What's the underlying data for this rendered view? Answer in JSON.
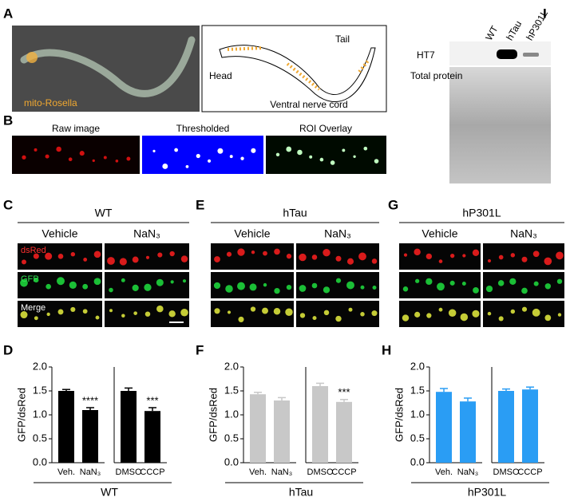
{
  "panels": {
    "A": {
      "label": "A",
      "caption": "mito-Rosella",
      "head": "Head",
      "tail": "Tail",
      "cord": "Ventral nerve cord"
    },
    "B": {
      "label": "B",
      "images": [
        "Raw image",
        "Thresholded",
        "ROI Overlay"
      ]
    },
    "C": {
      "label": "C",
      "title": "WT",
      "columns": [
        "Vehicle",
        "NaN₃"
      ],
      "rows": [
        "dsRed",
        "GFP",
        "Merge"
      ]
    },
    "E": {
      "label": "E",
      "title": "hTau",
      "columns": [
        "Vehicle",
        "NaN₃"
      ]
    },
    "G": {
      "label": "G",
      "title": "hP301L",
      "columns": [
        "Vehicle",
        "NaN₃"
      ]
    },
    "I": {
      "label": "I",
      "lanes": [
        "WT",
        "hTau",
        "hP301L"
      ],
      "rows": [
        "HT7",
        "Total protein"
      ]
    }
  },
  "chart_data": [
    {
      "type": "bar",
      "panel": "D",
      "ylabel": "GFP/dsRed",
      "xlabel": "WT",
      "color": "#000000",
      "ylim": [
        0,
        2
      ],
      "yticks": [
        {
          "value": 0,
          "label": "0.0"
        },
        0.5,
        {
          "value": 1,
          "label": "1.0"
        },
        1.5,
        {
          "value": 2,
          "label": "2.0"
        }
      ],
      "groups": [
        {
          "categories": [
            "Veh.",
            "NaN₃"
          ],
          "values": [
            1.5,
            1.1
          ],
          "errors": [
            0.03,
            0.05
          ],
          "annotations": [
            null,
            "****"
          ]
        },
        {
          "categories": [
            "DMSO",
            "CCCP"
          ],
          "values": [
            1.5,
            1.08
          ],
          "errors": [
            0.06,
            0.07
          ],
          "annotations": [
            null,
            "***"
          ]
        }
      ]
    },
    {
      "type": "bar",
      "panel": "F",
      "ylabel": "GFP/dsRed",
      "xlabel": "hTau",
      "color": "#c8c8c8",
      "ylim": [
        0,
        2
      ],
      "yticks": [
        {
          "value": 0,
          "label": "0.0"
        },
        0.5,
        {
          "value": 1,
          "label": "1.0"
        },
        1.5,
        {
          "value": 2,
          "label": "2.0"
        }
      ],
      "groups": [
        {
          "categories": [
            "Veh.",
            "NaN₃"
          ],
          "values": [
            1.43,
            1.3
          ],
          "errors": [
            0.04,
            0.06
          ],
          "annotations": [
            null,
            null
          ]
        },
        {
          "categories": [
            "DMSO",
            "CCCP"
          ],
          "values": [
            1.6,
            1.27
          ],
          "errors": [
            0.06,
            0.05
          ],
          "annotations": [
            null,
            "***"
          ]
        }
      ]
    },
    {
      "type": "bar",
      "panel": "H",
      "ylabel": "GFP/dsRed",
      "xlabel": "hP301L",
      "color": "#2a9df4",
      "ylim": [
        0,
        2
      ],
      "yticks": [
        {
          "value": 0,
          "label": "0.0"
        },
        0.5,
        {
          "value": 1,
          "label": "1.0"
        },
        1.5,
        {
          "value": 2,
          "label": "2.0"
        }
      ],
      "groups": [
        {
          "categories": [
            "Veh.",
            "NaN₃"
          ],
          "values": [
            1.48,
            1.28
          ],
          "errors": [
            0.07,
            0.07
          ],
          "annotations": [
            null,
            null
          ]
        },
        {
          "categories": [
            "DMSO",
            "CCCP"
          ],
          "values": [
            1.5,
            1.53
          ],
          "errors": [
            0.04,
            0.05
          ],
          "annotations": [
            null,
            null
          ]
        }
      ]
    }
  ]
}
